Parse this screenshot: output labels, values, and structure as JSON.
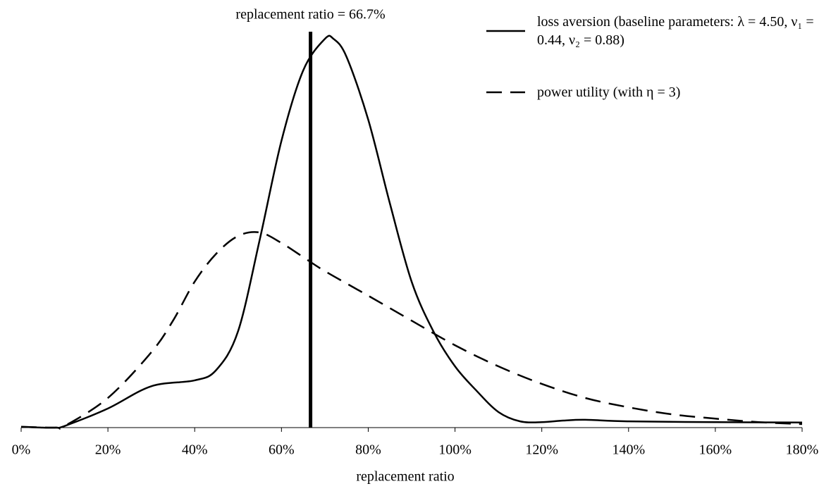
{
  "chart_data": {
    "type": "line",
    "annotation": {
      "value": 66.7,
      "label": "replacement ratio = 66.7%"
    },
    "xlabel": "replacement ratio",
    "xlim": [
      0,
      180
    ],
    "ylim": [
      0,
      100
    ],
    "xticks": [
      {
        "value": 0,
        "label": "0%"
      },
      {
        "value": 20,
        "label": "20%"
      },
      {
        "value": 40,
        "label": "40%"
      },
      {
        "value": 60,
        "label": "60%"
      },
      {
        "value": 80,
        "label": "80%"
      },
      {
        "value": 100,
        "label": "100%"
      },
      {
        "value": 120,
        "label": "120%"
      },
      {
        "value": 140,
        "label": "140%"
      },
      {
        "value": 160,
        "label": "160%"
      },
      {
        "value": 180,
        "label": "180%"
      }
    ],
    "series": [
      {
        "name": "loss aversion (baseline parameters: λ = 4.50,  ν₁ = 0.44,  ν₂ = 0.88)",
        "color": "#000000",
        "dash": false,
        "x": [
          0,
          5,
          8,
          10,
          20,
          30,
          40,
          45,
          50,
          55,
          60,
          65,
          70,
          72,
          75,
          80,
          85,
          90,
          95,
          100,
          105,
          110,
          115,
          120,
          125,
          130,
          140,
          160,
          180
        ],
        "values": [
          0.2,
          0,
          0,
          0.4,
          4.9,
          10.6,
          12.1,
          14.8,
          24.7,
          48.2,
          73.5,
          91.5,
          99.6,
          99.6,
          95,
          78.9,
          57.4,
          37.4,
          24.7,
          15.7,
          9.4,
          4,
          1.6,
          1.4,
          1.8,
          2,
          1.6,
          1.4,
          1.3
        ]
      },
      {
        "name": "power utility (with η = 3)",
        "color": "#000000",
        "dash": true,
        "x": [
          0,
          8,
          10,
          20,
          30,
          35,
          40,
          45,
          50,
          55,
          60,
          65,
          70,
          80,
          90,
          100,
          110,
          120,
          130,
          140,
          150,
          160,
          170,
          180
        ],
        "values": [
          0.2,
          0,
          0.4,
          7.6,
          19.3,
          27.4,
          37.4,
          44.6,
          49.1,
          50,
          47.3,
          43.7,
          40.1,
          33.8,
          27.4,
          21.1,
          15.7,
          11.2,
          7.6,
          5.2,
          3.4,
          2.3,
          1.4,
          0.9
        ]
      }
    ]
  }
}
